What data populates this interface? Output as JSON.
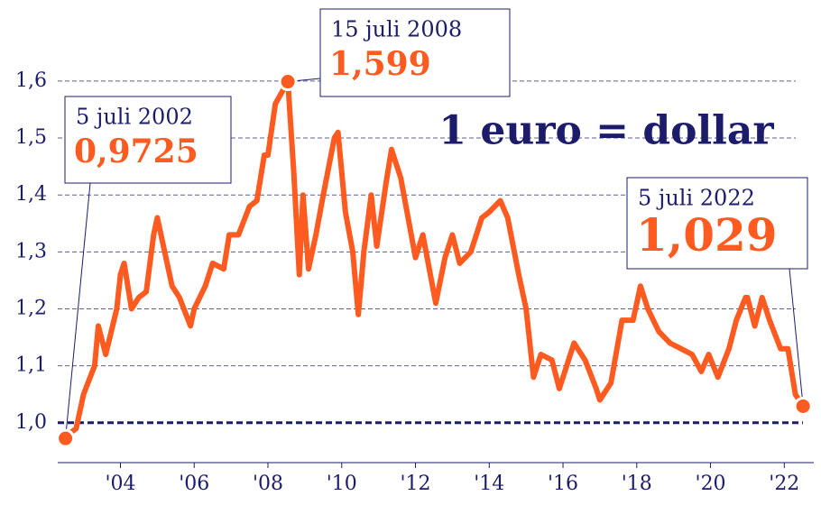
{
  "chart_data": {
    "type": "line",
    "title": "1 euro = dollar",
    "x": [
      2002.51,
      2002.6,
      2002.8,
      2003.0,
      2003.3,
      2003.4,
      2003.6,
      2003.75,
      2003.9,
      2004.0,
      2004.1,
      2004.3,
      2004.5,
      2004.7,
      2004.9,
      2005.0,
      2005.2,
      2005.4,
      2005.6,
      2005.9,
      2006.0,
      2006.3,
      2006.5,
      2006.8,
      2006.95,
      2007.2,
      2007.5,
      2007.7,
      2007.9,
      2008.0,
      2008.2,
      2008.54,
      2008.7,
      2008.85,
      2008.95,
      2009.1,
      2009.3,
      2009.5,
      2009.8,
      2009.9,
      2010.1,
      2010.3,
      2010.45,
      2010.6,
      2010.8,
      2010.95,
      2011.2,
      2011.35,
      2011.6,
      2011.8,
      2012.0,
      2012.2,
      2012.55,
      2012.8,
      2013.0,
      2013.2,
      2013.5,
      2013.8,
      2014.0,
      2014.3,
      2014.5,
      2014.8,
      2015.0,
      2015.2,
      2015.4,
      2015.7,
      2015.9,
      2016.1,
      2016.3,
      2016.6,
      2016.9,
      2017.0,
      2017.3,
      2017.6,
      2017.9,
      2018.1,
      2018.3,
      2018.6,
      2018.9,
      2019.2,
      2019.5,
      2019.75,
      2019.95,
      2020.2,
      2020.5,
      2020.7,
      2020.95,
      2021.0,
      2021.2,
      2021.4,
      2021.6,
      2021.9,
      2022.1,
      2022.3,
      2022.51
    ],
    "series": [
      {
        "color": "#ff5a1f",
        "values": [
          0.9725,
          0.98,
          0.99,
          1.05,
          1.1,
          1.17,
          1.12,
          1.16,
          1.2,
          1.26,
          1.28,
          1.2,
          1.22,
          1.23,
          1.33,
          1.36,
          1.3,
          1.24,
          1.22,
          1.17,
          1.2,
          1.24,
          1.28,
          1.27,
          1.33,
          1.33,
          1.38,
          1.39,
          1.47,
          1.47,
          1.56,
          1.599,
          1.44,
          1.26,
          1.4,
          1.27,
          1.33,
          1.4,
          1.5,
          1.51,
          1.37,
          1.3,
          1.19,
          1.3,
          1.4,
          1.31,
          1.42,
          1.48,
          1.43,
          1.36,
          1.29,
          1.33,
          1.21,
          1.29,
          1.33,
          1.28,
          1.3,
          1.36,
          1.37,
          1.39,
          1.36,
          1.26,
          1.2,
          1.08,
          1.12,
          1.11,
          1.06,
          1.1,
          1.14,
          1.11,
          1.06,
          1.04,
          1.07,
          1.18,
          1.18,
          1.24,
          1.2,
          1.16,
          1.14,
          1.13,
          1.12,
          1.09,
          1.12,
          1.08,
          1.13,
          1.18,
          1.22,
          1.22,
          1.17,
          1.22,
          1.18,
          1.13,
          1.13,
          1.05,
          1.029
        ]
      }
    ],
    "xlim": [
      2002.3,
      2022.8
    ],
    "xticks": [
      {
        "value": 2004,
        "label": "'04"
      },
      {
        "value": 2006,
        "label": "'06"
      },
      {
        "value": 2008,
        "label": "'08"
      },
      {
        "value": 2010,
        "label": "'10"
      },
      {
        "value": 2012,
        "label": "'12"
      },
      {
        "value": 2014,
        "label": "'14"
      },
      {
        "value": 2016,
        "label": "'16"
      },
      {
        "value": 2018,
        "label": "'18"
      },
      {
        "value": 2020,
        "label": "'20"
      },
      {
        "value": 2022,
        "label": "'22"
      }
    ],
    "ylim": [
      0.93,
      1.66
    ],
    "yticks": [
      {
        "value": 1.0,
        "label": "1,0"
      },
      {
        "value": 1.1,
        "label": "1,1"
      },
      {
        "value": 1.2,
        "label": "1,2"
      },
      {
        "value": 1.3,
        "label": "1,3"
      },
      {
        "value": 1.4,
        "label": "1,4"
      },
      {
        "value": 1.5,
        "label": "1,5"
      },
      {
        "value": 1.6,
        "label": "1,6"
      }
    ],
    "grid": true,
    "annotations": [
      {
        "label": "5 juli 2002",
        "x": 2002.51,
        "y": 0.9725,
        "value_label": "0,9725"
      },
      {
        "label": "15 juli 2008",
        "x": 2008.54,
        "y": 1.599,
        "value_label": "1,599"
      },
      {
        "label": "5 juli 2022",
        "x": 2022.51,
        "y": 1.029,
        "value_label": "1,029"
      }
    ]
  }
}
